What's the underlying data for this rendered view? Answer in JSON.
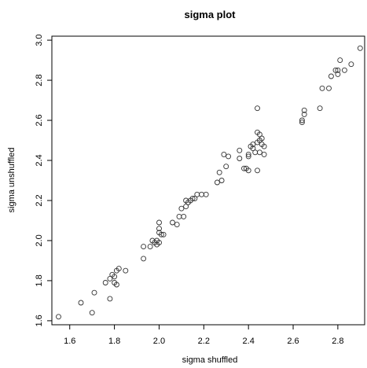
{
  "chart_data": {
    "type": "scatter",
    "title": "sigma plot",
    "xlabel": "sigma shuffled",
    "ylabel": "sigma unshuffled",
    "xlim": [
      1.52,
      2.92
    ],
    "ylim": [
      1.58,
      3.02
    ],
    "xticks": [
      1.6,
      1.8,
      2.0,
      2.2,
      2.4,
      2.6,
      2.8
    ],
    "xtick_labels": [
      "1.6",
      "1.8",
      "2.0",
      "2.2",
      "2.4",
      "2.6",
      "2.8"
    ],
    "yticks": [
      1.6,
      1.8,
      2.0,
      2.2,
      2.4,
      2.6,
      2.8,
      3.0
    ],
    "ytick_labels": [
      "1.6",
      "1.8",
      "2.0",
      "2.2",
      "2.4",
      "2.6",
      "2.8",
      "3.0"
    ],
    "grid": false,
    "marker": "open-circle",
    "color": "#333333",
    "points": [
      [
        1.55,
        1.62
      ],
      [
        1.65,
        1.69
      ],
      [
        1.7,
        1.64
      ],
      [
        1.71,
        1.74
      ],
      [
        1.76,
        1.79
      ],
      [
        1.78,
        1.81
      ],
      [
        1.78,
        1.71
      ],
      [
        1.79,
        1.83
      ],
      [
        1.8,
        1.82
      ],
      [
        1.8,
        1.79
      ],
      [
        1.81,
        1.78
      ],
      [
        1.81,
        1.85
      ],
      [
        1.82,
        1.86
      ],
      [
        1.85,
        1.85
      ],
      [
        1.93,
        1.91
      ],
      [
        1.93,
        1.97
      ],
      [
        1.96,
        1.97
      ],
      [
        1.97,
        2.0
      ],
      [
        1.98,
        1.99
      ],
      [
        1.99,
        1.98
      ],
      [
        1.99,
        2.0
      ],
      [
        2.0,
        1.99
      ],
      [
        2.0,
        2.04
      ],
      [
        2.0,
        2.06
      ],
      [
        2.0,
        2.09
      ],
      [
        2.01,
        2.03
      ],
      [
        2.02,
        2.03
      ],
      [
        2.06,
        2.09
      ],
      [
        2.08,
        2.08
      ],
      [
        2.09,
        2.12
      ],
      [
        2.1,
        2.16
      ],
      [
        2.11,
        2.12
      ],
      [
        2.12,
        2.17
      ],
      [
        2.12,
        2.2
      ],
      [
        2.13,
        2.19
      ],
      [
        2.14,
        2.2
      ],
      [
        2.15,
        2.21
      ],
      [
        2.16,
        2.21
      ],
      [
        2.17,
        2.23
      ],
      [
        2.19,
        2.23
      ],
      [
        2.21,
        2.23
      ],
      [
        2.26,
        2.29
      ],
      [
        2.27,
        2.34
      ],
      [
        2.28,
        2.3
      ],
      [
        2.29,
        2.43
      ],
      [
        2.3,
        2.37
      ],
      [
        2.31,
        2.42
      ],
      [
        2.36,
        2.41
      ],
      [
        2.36,
        2.45
      ],
      [
        2.38,
        2.36
      ],
      [
        2.39,
        2.36
      ],
      [
        2.4,
        2.35
      ],
      [
        2.4,
        2.42
      ],
      [
        2.4,
        2.43
      ],
      [
        2.41,
        2.47
      ],
      [
        2.42,
        2.46
      ],
      [
        2.42,
        2.48
      ],
      [
        2.43,
        2.44
      ],
      [
        2.44,
        2.35
      ],
      [
        2.44,
        2.49
      ],
      [
        2.44,
        2.54
      ],
      [
        2.44,
        2.66
      ],
      [
        2.45,
        2.44
      ],
      [
        2.45,
        2.5
      ],
      [
        2.45,
        2.53
      ],
      [
        2.46,
        2.51
      ],
      [
        2.46,
        2.48
      ],
      [
        2.47,
        2.43
      ],
      [
        2.47,
        2.47
      ],
      [
        2.64,
        2.59
      ],
      [
        2.64,
        2.6
      ],
      [
        2.65,
        2.63
      ],
      [
        2.65,
        2.65
      ],
      [
        2.72,
        2.66
      ],
      [
        2.73,
        2.76
      ],
      [
        2.76,
        2.76
      ],
      [
        2.77,
        2.82
      ],
      [
        2.79,
        2.85
      ],
      [
        2.8,
        2.83
      ],
      [
        2.8,
        2.85
      ],
      [
        2.81,
        2.9
      ],
      [
        2.83,
        2.85
      ],
      [
        2.86,
        2.88
      ],
      [
        2.9,
        2.96
      ]
    ]
  }
}
